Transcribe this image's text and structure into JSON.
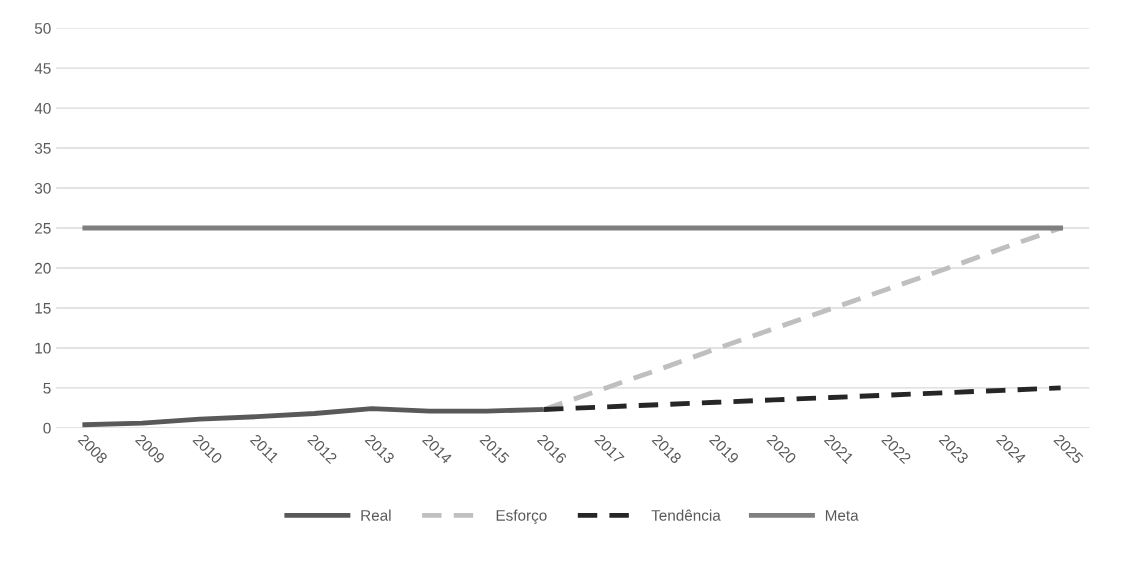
{
  "chart_data": {
    "type": "line",
    "categories": [
      "2008",
      "2009",
      "2010",
      "2011",
      "2012",
      "2013",
      "2014",
      "2015",
      "2016",
      "2017",
      "2018",
      "2019",
      "2020",
      "2021",
      "2022",
      "2023",
      "2024",
      "2025"
    ],
    "series": [
      {
        "name": "Real",
        "color": "#595959",
        "line_style": "solid",
        "values": [
          0.4,
          0.6,
          1.1,
          1.4,
          1.8,
          2.4,
          2.1,
          2.1,
          2.3,
          null,
          null,
          null,
          null,
          null,
          null,
          null,
          null,
          null
        ]
      },
      {
        "name": "Esforço",
        "color": "#bfbfbf",
        "line_style": "dashed",
        "values": [
          null,
          null,
          null,
          null,
          null,
          null,
          null,
          null,
          2.3,
          4.8,
          7.3,
          9.9,
          12.4,
          14.9,
          17.4,
          19.9,
          22.5,
          25
        ]
      },
      {
        "name": "Tendência",
        "color": "#262626",
        "line_style": "dashed",
        "values": [
          null,
          null,
          null,
          null,
          null,
          null,
          null,
          null,
          2.3,
          2.6,
          2.9,
          3.2,
          3.5,
          3.8,
          4.1,
          4.4,
          4.7,
          5.0
        ]
      },
      {
        "name": "Meta",
        "color": "#7f7f7f",
        "line_style": "solid",
        "values": [
          25,
          25,
          25,
          25,
          25,
          25,
          25,
          25,
          25,
          25,
          25,
          25,
          25,
          25,
          25,
          25,
          25,
          25
        ]
      }
    ],
    "ylim": [
      0,
      50
    ],
    "yticks": [
      0,
      5,
      10,
      15,
      20,
      25,
      30,
      35,
      40,
      45,
      50
    ],
    "grid": "y",
    "legend": "bottom",
    "marker": "none"
  }
}
